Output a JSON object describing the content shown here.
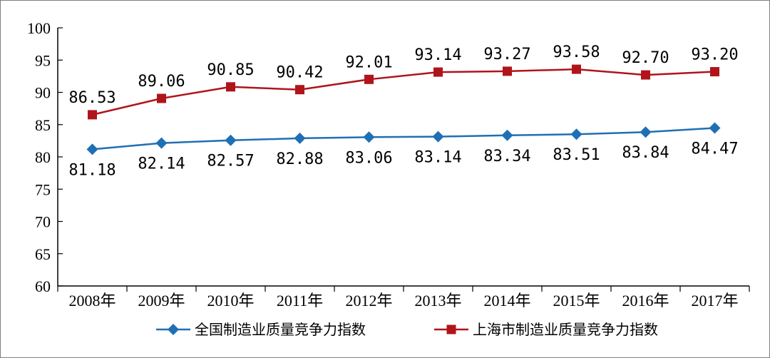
{
  "chart_data": {
    "type": "line",
    "title": "",
    "xlabel": "",
    "ylabel": "",
    "categories": [
      "2008年",
      "2009年",
      "2010年",
      "2011年",
      "2012年",
      "2013年",
      "2014年",
      "2015年",
      "2016年",
      "2017年"
    ],
    "ylim": [
      60,
      100
    ],
    "yticks": [
      "60",
      "65",
      "70",
      "75",
      "80",
      "85",
      "90",
      "95",
      "100"
    ],
    "grid": false,
    "legend_position": "bottom",
    "series": [
      {
        "name": "全国制造业质量竞争力指数",
        "color": "#1f6fb5",
        "marker": "diamond",
        "values": [
          81.18,
          82.14,
          82.57,
          82.88,
          83.06,
          83.14,
          83.34,
          83.51,
          83.84,
          84.47
        ],
        "value_labels": [
          "81.18",
          "82.14",
          "82.57",
          "82.88",
          "83.06",
          "83.14",
          "83.34",
          "83.51",
          "83.84",
          "84.47"
        ],
        "label_position": "below"
      },
      {
        "name": "上海市制造业质量竞争力指数",
        "color": "#b0141b",
        "marker": "square",
        "values": [
          86.53,
          89.06,
          90.85,
          90.42,
          92.01,
          93.14,
          93.27,
          93.58,
          92.7,
          93.2
        ],
        "value_labels": [
          "86.53",
          "89.06",
          "90.85",
          "90.42",
          "92.01",
          "93.14",
          "93.27",
          "93.58",
          "92.70",
          "93.20"
        ],
        "label_position": "above"
      }
    ]
  }
}
